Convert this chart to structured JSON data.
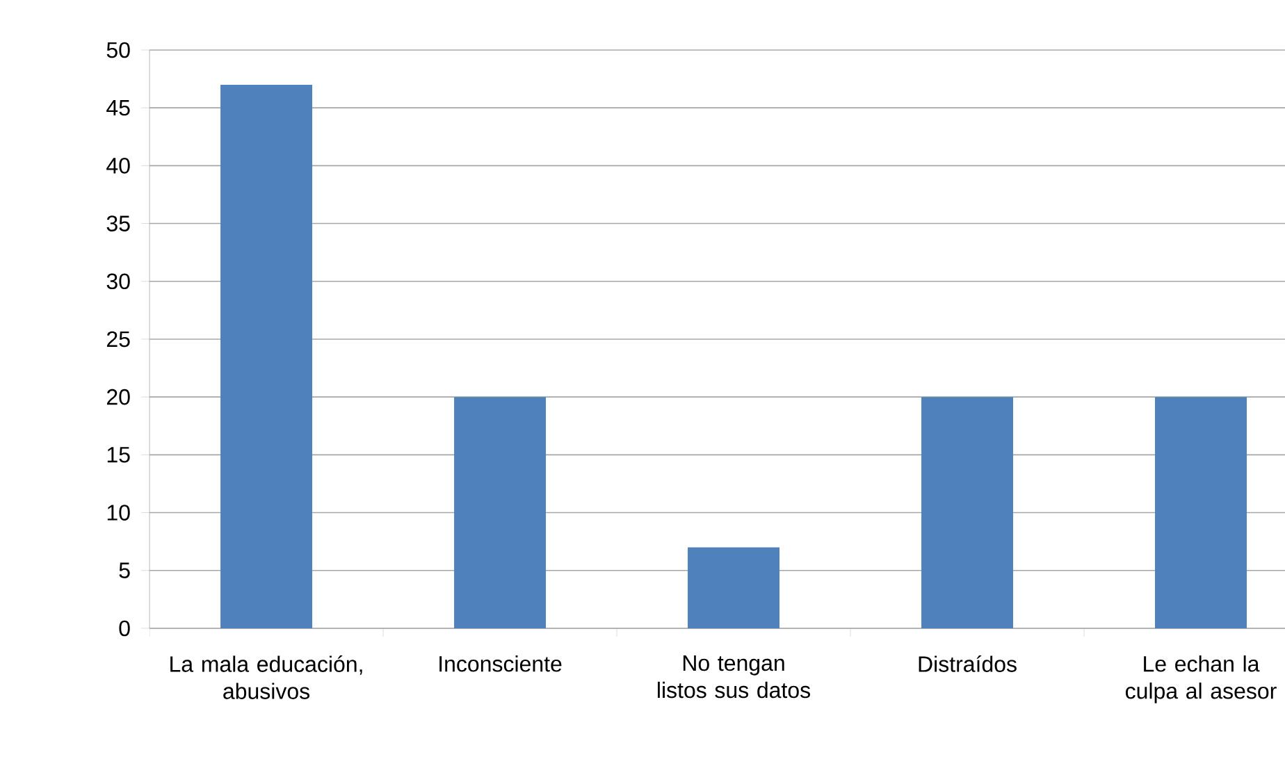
{
  "chart_data": {
    "type": "bar",
    "categories": [
      "La mala educación, abusivos",
      "Inconsciente",
      "No tengan listos sus datos",
      "Distraídos",
      "Le echan la culpa al asesor"
    ],
    "values": [
      47,
      20,
      7,
      20,
      20
    ],
    "color": "#4f81bd",
    "ylim": [
      0,
      50
    ],
    "yticks": [
      0,
      5,
      10,
      15,
      20,
      25,
      30,
      35,
      40,
      45,
      50
    ],
    "grid": "y"
  }
}
